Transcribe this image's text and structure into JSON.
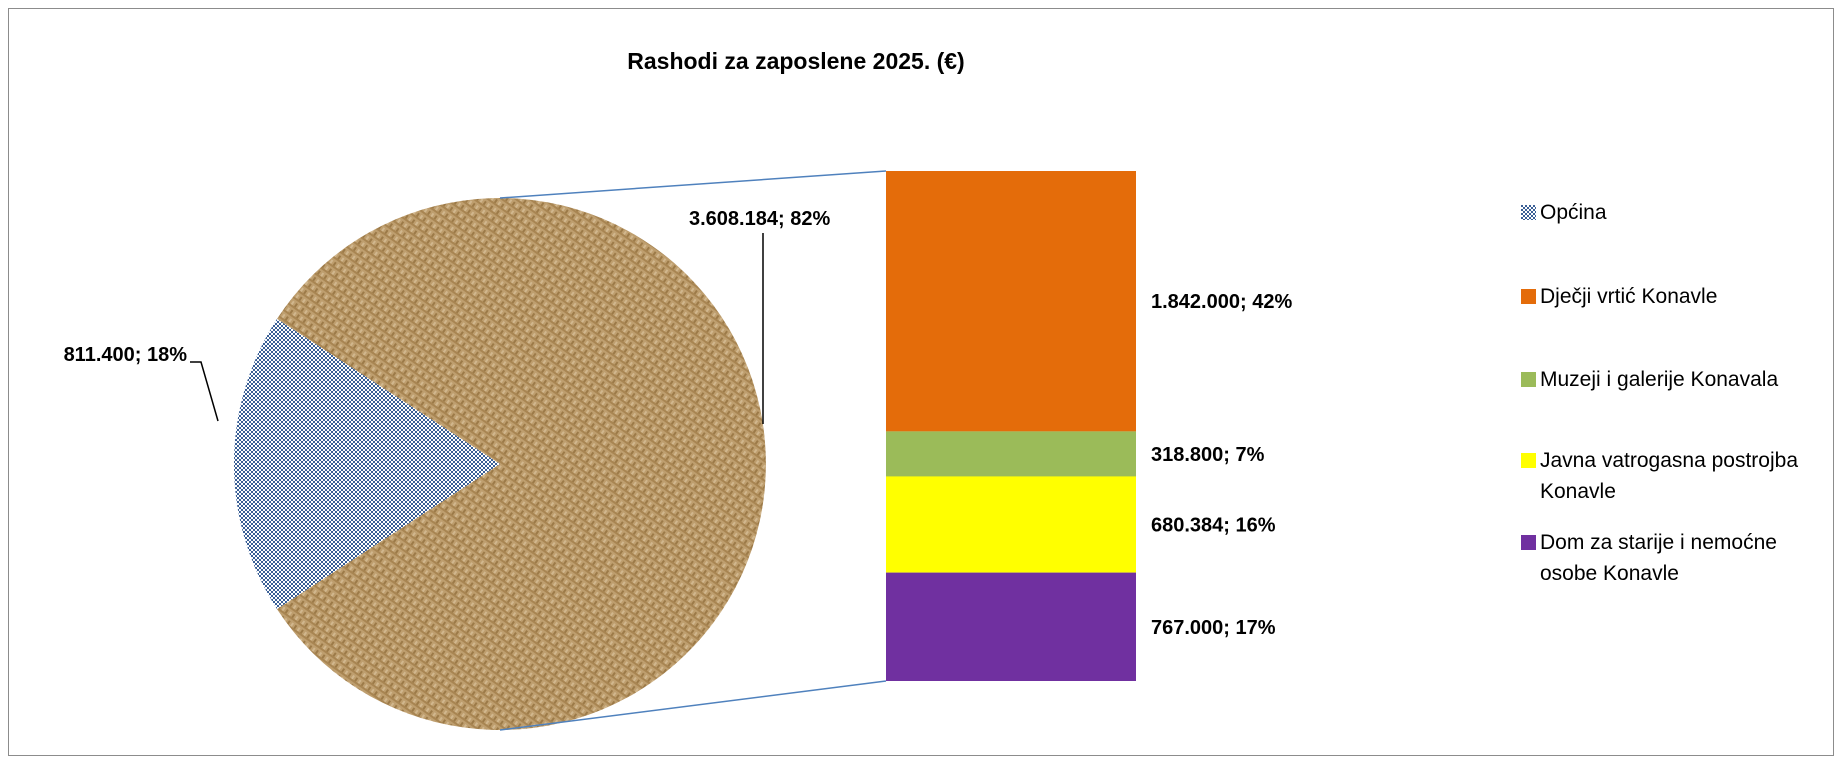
{
  "chart_data": {
    "type": "bar-of-pie",
    "title": "Rashodi za zaposlene 2025. (€)",
    "pie": {
      "slices": [
        {
          "name": "Općina",
          "value": 811400,
          "label": "811.400; 18%",
          "fill": "pattern-blue-check"
        },
        {
          "name": "Other",
          "value": 3608184,
          "label": "3.608.184; 82%",
          "fill": "pattern-burlap"
        }
      ]
    },
    "bar": {
      "segments": [
        {
          "name": "Dječji vrtić Konavle",
          "value": 1842000,
          "label": "1.842.000; 42%",
          "color": "#E46C0A"
        },
        {
          "name": "Muzeji i galerije Konavala",
          "value": 318800,
          "label": "318.800; 7%",
          "color": "#9BBB59"
        },
        {
          "name": "Javna vatrogasna postrojba Konavle",
          "value": 680384,
          "label": "680.384; 16%",
          "color": "#FFFF00"
        },
        {
          "name": "Dom za starije i nemoćne osobe Konavle",
          "value": 767000,
          "label": "767.000; 17%",
          "color": "#7030A0"
        }
      ]
    },
    "legend": {
      "placement": "right",
      "entries": [
        {
          "lines": [
            "Općina"
          ],
          "swatch": "pattern-blue-check"
        },
        {
          "lines": [
            "Dječji vrtić Konavle"
          ],
          "swatch": "#E46C0A"
        },
        {
          "lines": [
            "Muzeji i galerije Konavala"
          ],
          "swatch": "#9BBB59"
        },
        {
          "lines": [
            "Javna vatrogasna postrojba",
            "Konavle"
          ],
          "swatch": "#FFFF00"
        },
        {
          "lines": [
            "Dom za starije i nemoćne",
            "osobe Konavle"
          ],
          "swatch": "#7030A0"
        }
      ]
    }
  },
  "colors": {
    "connector": "#4F81BD",
    "burlap_base": "#BE9E6E",
    "check_blue": "#3A5F96"
  }
}
